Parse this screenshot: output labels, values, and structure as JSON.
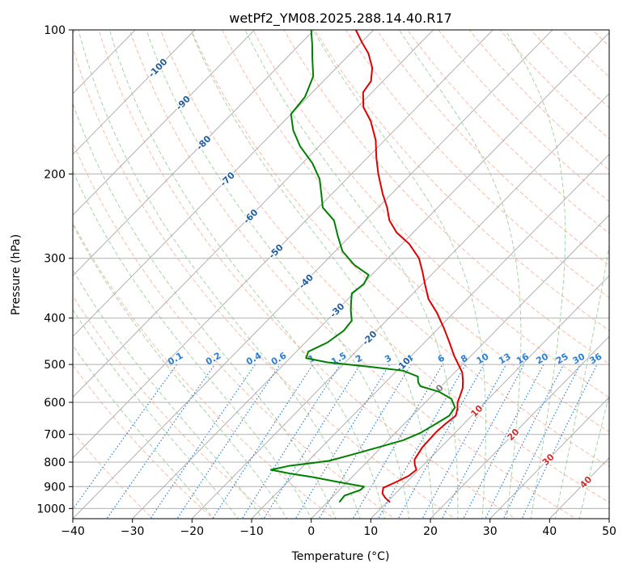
{
  "chart_data": {
    "type": "line",
    "title": "wetPf2_YM08.2025.288.14.40.R17",
    "xlabel": "Temperature (°C)",
    "ylabel": "Pressure (hPa)",
    "xlim": [
      -40,
      50
    ],
    "ylim": [
      1050,
      100
    ],
    "y_scale": "log",
    "grid": true,
    "x_ticks": [
      -40,
      -30,
      -20,
      -10,
      0,
      10,
      20,
      30,
      40,
      50
    ],
    "y_ticks": [
      100,
      200,
      300,
      400,
      500,
      600,
      700,
      800,
      900,
      1000
    ],
    "colors": {
      "temperature": "#e00000",
      "dewpoint": "#008000",
      "isotherm_grid": "#b0b0b0",
      "dry_adiabat": "#f4a080",
      "moist_adiabat": "#90c890",
      "mixing_ratio": "#2a7fd4",
      "isotherm_label": "#1f5fa0",
      "adiabat_label": "#d03030"
    },
    "isotherm_labels": [
      "-100",
      "-90",
      "-80",
      "-70",
      "-60",
      "-50",
      "-40",
      "-30",
      "-20",
      "-10",
      "0"
    ],
    "isotherm_label_values": [
      -100,
      -90,
      -80,
      -70,
      -60,
      -50,
      -40,
      -30,
      -20,
      -10,
      0
    ],
    "adiabat_labels": [
      "10",
      "20",
      "30",
      "40"
    ],
    "adiabat_label_values": [
      10,
      20,
      30,
      40
    ],
    "mixing_ratio_labels": [
      "0.1",
      "0.2",
      "0.4",
      "0.6",
      "1",
      "1.5",
      "2",
      "3",
      "4",
      "6",
      "8",
      "10",
      "13",
      "16",
      "20",
      "25",
      "30",
      "36"
    ],
    "mixing_ratio_values": [
      0.1,
      0.2,
      0.4,
      0.6,
      1,
      1.5,
      2,
      3,
      4,
      6,
      8,
      10,
      13,
      16,
      20,
      25,
      30,
      36
    ],
    "series": [
      {
        "key": "temperature",
        "points": [
          {
            "p": 970,
            "t": 10.5
          },
          {
            "p": 950,
            "t": 9.0
          },
          {
            "p": 930,
            "t": 7.8
          },
          {
            "p": 905,
            "t": 7.0
          },
          {
            "p": 880,
            "t": 8.2
          },
          {
            "p": 855,
            "t": 9.3
          },
          {
            "p": 830,
            "t": 9.6
          },
          {
            "p": 810,
            "t": 8.5
          },
          {
            "p": 790,
            "t": 7.6
          },
          {
            "p": 770,
            "t": 7.3
          },
          {
            "p": 745,
            "t": 6.9
          },
          {
            "p": 720,
            "t": 6.8
          },
          {
            "p": 690,
            "t": 6.7
          },
          {
            "p": 665,
            "t": 6.9
          },
          {
            "p": 640,
            "t": 7.3
          },
          {
            "p": 620,
            "t": 6.5
          },
          {
            "p": 600,
            "t": 5.4
          },
          {
            "p": 580,
            "t": 4.7
          },
          {
            "p": 560,
            "t": 3.9
          },
          {
            "p": 540,
            "t": 2.7
          },
          {
            "p": 520,
            "t": 1.3
          },
          {
            "p": 500,
            "t": -0.7
          },
          {
            "p": 480,
            "t": -2.8
          },
          {
            "p": 450,
            "t": -5.8
          },
          {
            "p": 420,
            "t": -9.1
          },
          {
            "p": 390,
            "t": -12.8
          },
          {
            "p": 365,
            "t": -16.5
          },
          {
            "p": 340,
            "t": -19.5
          },
          {
            "p": 320,
            "t": -22.0
          },
          {
            "p": 300,
            "t": -24.8
          },
          {
            "p": 280,
            "t": -28.8
          },
          {
            "p": 265,
            "t": -32.8
          },
          {
            "p": 250,
            "t": -36.0
          },
          {
            "p": 235,
            "t": -38.5
          },
          {
            "p": 220,
            "t": -41.5
          },
          {
            "p": 200,
            "t": -45.5
          },
          {
            "p": 185,
            "t": -48.5
          },
          {
            "p": 170,
            "t": -51.5
          },
          {
            "p": 155,
            "t": -55.5
          },
          {
            "p": 145,
            "t": -59.0
          },
          {
            "p": 135,
            "t": -61.5
          },
          {
            "p": 128,
            "t": -62.0
          },
          {
            "p": 120,
            "t": -64.0
          },
          {
            "p": 112,
            "t": -67.0
          },
          {
            "p": 106,
            "t": -70.0
          },
          {
            "p": 100,
            "t": -73.0
          }
        ]
      },
      {
        "key": "dewpoint",
        "points": [
          {
            "p": 970,
            "t": 2.0
          },
          {
            "p": 940,
            "t": 1.8
          },
          {
            "p": 915,
            "t": 3.5
          },
          {
            "p": 900,
            "t": 3.6
          },
          {
            "p": 880,
            "t": -1.5
          },
          {
            "p": 860,
            "t": -6.5
          },
          {
            "p": 845,
            "t": -11.0
          },
          {
            "p": 830,
            "t": -14.8
          },
          {
            "p": 815,
            "t": -12.5
          },
          {
            "p": 795,
            "t": -6.5
          },
          {
            "p": 770,
            "t": -3.5
          },
          {
            "p": 745,
            "t": -0.5
          },
          {
            "p": 720,
            "t": 2.5
          },
          {
            "p": 695,
            "t": 4.2
          },
          {
            "p": 665,
            "t": 5.3
          },
          {
            "p": 640,
            "t": 6.2
          },
          {
            "p": 615,
            "t": 5.8
          },
          {
            "p": 590,
            "t": 3.8
          },
          {
            "p": 570,
            "t": 0.5
          },
          {
            "p": 555,
            "t": -3.5
          },
          {
            "p": 545,
            "t": -4.5
          },
          {
            "p": 530,
            "t": -5.5
          },
          {
            "p": 515,
            "t": -9.0
          },
          {
            "p": 505,
            "t": -15.5
          },
          {
            "p": 495,
            "t": -23.0
          },
          {
            "p": 485,
            "t": -27.3
          },
          {
            "p": 470,
            "t": -28.0
          },
          {
            "p": 450,
            "t": -26.3
          },
          {
            "p": 425,
            "t": -25.5
          },
          {
            "p": 405,
            "t": -25.8
          },
          {
            "p": 385,
            "t": -27.7
          },
          {
            "p": 370,
            "t": -29.0
          },
          {
            "p": 355,
            "t": -30.3
          },
          {
            "p": 340,
            "t": -29.8
          },
          {
            "p": 325,
            "t": -30.5
          },
          {
            "p": 310,
            "t": -34.5
          },
          {
            "p": 290,
            "t": -38.8
          },
          {
            "p": 270,
            "t": -42.0
          },
          {
            "p": 250,
            "t": -45.3
          },
          {
            "p": 235,
            "t": -49.3
          },
          {
            "p": 220,
            "t": -51.8
          },
          {
            "p": 205,
            "t": -54.5
          },
          {
            "p": 190,
            "t": -58.3
          },
          {
            "p": 175,
            "t": -63.2
          },
          {
            "p": 162,
            "t": -67.0
          },
          {
            "p": 150,
            "t": -70.0
          },
          {
            "p": 138,
            "t": -70.5
          },
          {
            "p": 125,
            "t": -72.5
          },
          {
            "p": 115,
            "t": -75.5
          },
          {
            "p": 107,
            "t": -78.0
          },
          {
            "p": 100,
            "t": -80.5
          }
        ]
      }
    ]
  }
}
